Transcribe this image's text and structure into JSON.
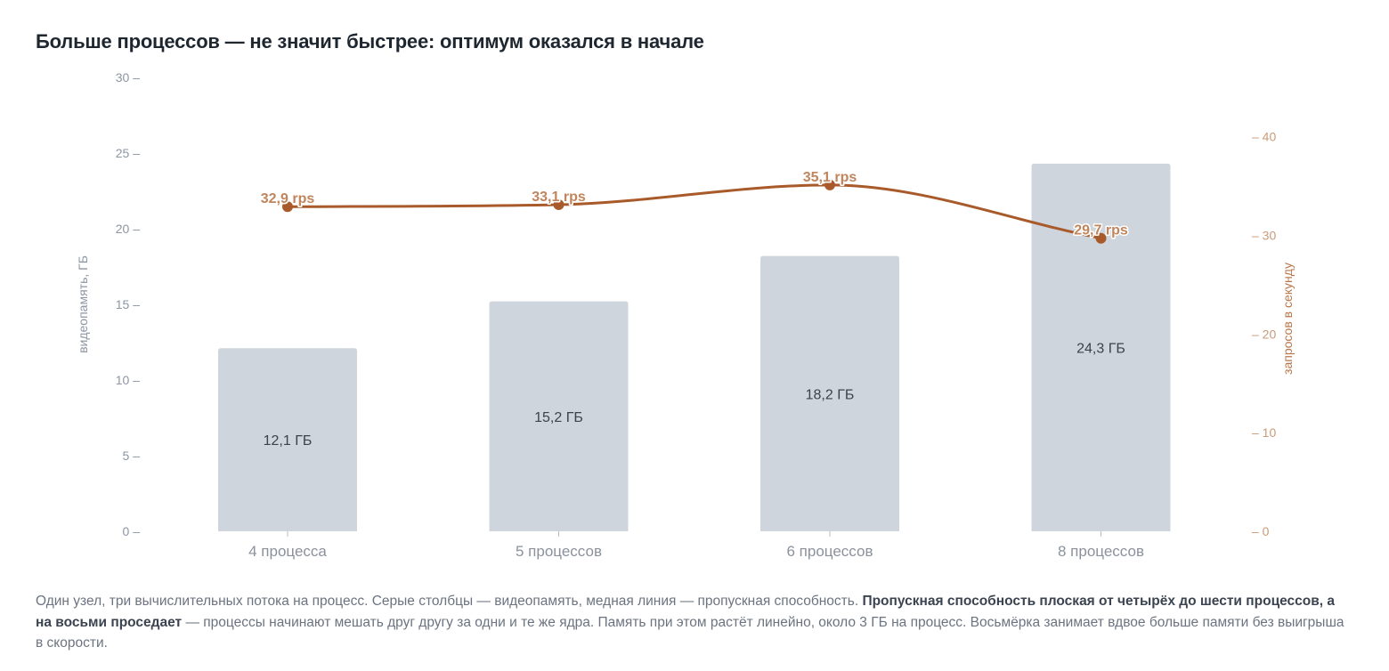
{
  "title": "Больше процессов — не значит быстрее: оптимум оказался в начале",
  "chart_data": {
    "type": "bar",
    "categories": [
      "4 процесса",
      "5 процессов",
      "6 процессов",
      "8 процессов"
    ],
    "series": [
      {
        "kind": "bar",
        "axis": "left",
        "values": [
          12.1,
          15.2,
          18.2,
          24.3
        ],
        "labels": [
          "12,1 ГБ",
          "15,2 ГБ",
          "18,2 ГБ",
          "24,3 ГБ"
        ],
        "color": "#cfd5dc"
      },
      {
        "kind": "line",
        "axis": "right",
        "values": [
          32.9,
          33.1,
          35.1,
          29.7
        ],
        "labels": [
          "32,9 rps",
          "33,1 rps",
          "35,1 rps",
          "29,7 rps"
        ],
        "color": "#a95a2b",
        "smooth": true
      }
    ],
    "ylabel": "видеопамять, ГБ",
    "ylabel_right": "запросов в секунду",
    "ylim": [
      0,
      30
    ],
    "ylim_right": [
      0,
      46
    ],
    "yticks": [
      {
        "value": 0,
        "label": "0 –"
      },
      {
        "value": 5,
        "label": "5 –"
      },
      {
        "value": 10,
        "label": "10 –"
      },
      {
        "value": 15,
        "label": "15 –"
      },
      {
        "value": 20,
        "label": "20 –"
      },
      {
        "value": 25,
        "label": "25 –"
      },
      {
        "value": 30,
        "label": "30 –"
      }
    ],
    "yticks_right": [
      {
        "value": 0,
        "label": "– 0"
      },
      {
        "value": 10,
        "label": "– 10"
      },
      {
        "value": 20,
        "label": "– 20"
      },
      {
        "value": 30,
        "label": "– 30"
      },
      {
        "value": 40,
        "label": "– 40"
      }
    ],
    "grid": false,
    "colors": {
      "left_axis": "#8d96a3",
      "right_axis": "#c99b78",
      "right_label": "#b8774b",
      "category_label": "#8a929d",
      "bar_label": "#3a424c",
      "line_label": "#c0855c"
    }
  },
  "caption": {
    "part1": "Один узел, три вычислительных потока на процесс. Серые столбцы — видеопамять, медная линия — пропускная способность. ",
    "bold": "Пропускная способность плоская от четырёх до шести процессов, а на восьми проседает",
    "part2": " — процессы начинают мешать друг другу за одни и те же ядра. Память при этом растёт линейно, около 3 ГБ на процесс. Восьмёрка занимает вдвое больше памяти без выигрыша в скорости."
  }
}
